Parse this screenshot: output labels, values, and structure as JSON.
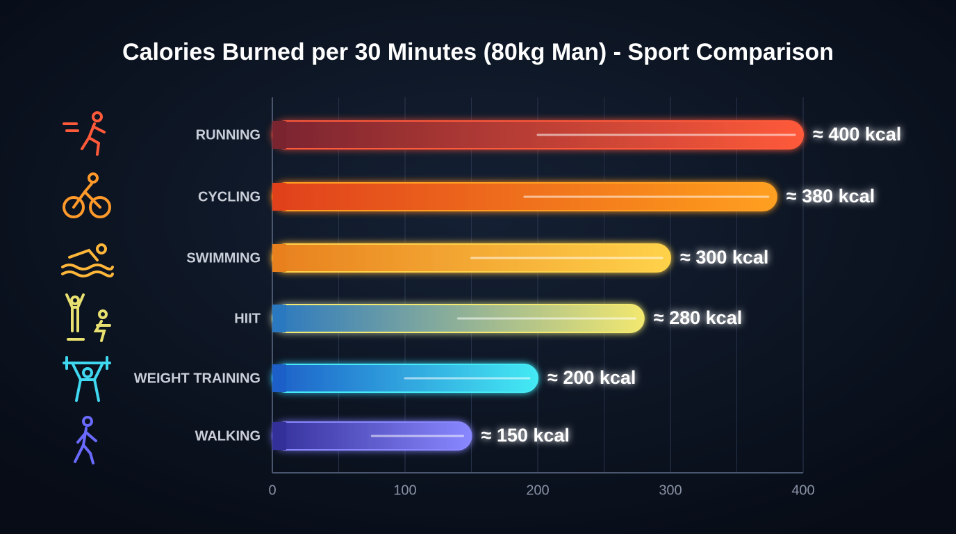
{
  "chart_data": {
    "type": "bar",
    "orientation": "horizontal",
    "title": "Calories Burned per 30 Minutes (80kg Man) - Sport Comparison",
    "categories": [
      "RUNNING",
      "CYCLING",
      "SWIMMING",
      "HIIT",
      "WEIGHT TRAINING",
      "WALKING"
    ],
    "values": [
      400,
      380,
      300,
      280,
      200,
      150
    ],
    "value_labels": [
      "≈ 400 kcal",
      "≈ 380 kcal",
      "≈ 300 kcal",
      "≈ 280 kcal",
      "≈ 200 kcal",
      "≈ 150 kcal"
    ],
    "colors": [
      [
        "#7a2430",
        "#ff5a3a"
      ],
      [
        "#e0401a",
        "#ffa020"
      ],
      [
        "#e8801e",
        "#ffd24a"
      ],
      [
        "#2a78c0",
        "#f2e870"
      ],
      [
        "#1d5fc8",
        "#44eaf4"
      ],
      [
        "#34309a",
        "#8a88ff"
      ]
    ],
    "xlim": [
      0,
      400
    ],
    "xticks": [
      0,
      100,
      200,
      300,
      400
    ],
    "minor_xticks": [
      50,
      150,
      250,
      350
    ],
    "grid": true
  }
}
